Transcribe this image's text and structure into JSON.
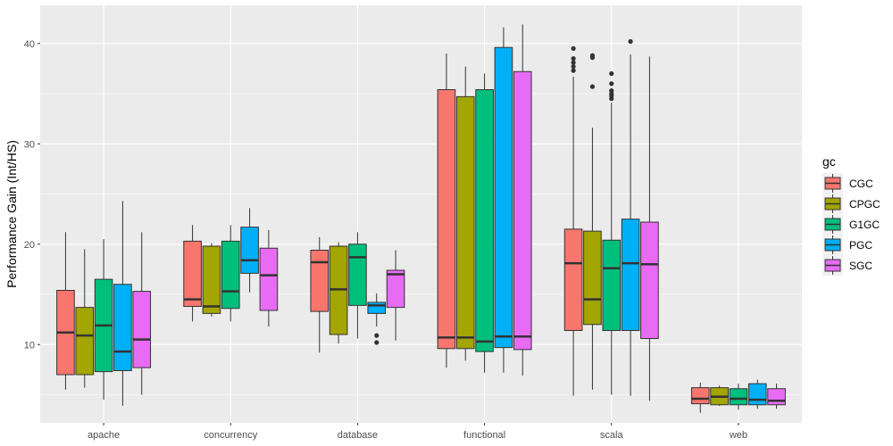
{
  "chart_data": {
    "type": "boxplot",
    "title": "",
    "xlabel": "",
    "ylabel": "Performance Gain (Int/HS)",
    "ylim": [
      2.2,
      43.8
    ],
    "yticks": [
      10,
      20,
      30,
      40
    ],
    "grid": true,
    "legend_title": "gc",
    "legend_position": "right",
    "categories": [
      "apache",
      "concurrency",
      "database",
      "functional",
      "scala",
      "web"
    ],
    "series": [
      {
        "name": "CGC",
        "color": "#F8766D",
        "boxes": [
          {
            "whisker_low": 5.5,
            "q1": 7.0,
            "median": 11.2,
            "q3": 15.4,
            "whisker_high": 21.2,
            "outliers": []
          },
          {
            "whisker_low": 12.3,
            "q1": 13.8,
            "median": 14.5,
            "q3": 20.3,
            "whisker_high": 21.9,
            "outliers": []
          },
          {
            "whisker_low": 9.2,
            "q1": 13.3,
            "median": 18.2,
            "q3": 19.4,
            "whisker_high": 20.7,
            "outliers": []
          },
          {
            "whisker_low": 7.7,
            "q1": 9.6,
            "median": 10.7,
            "q3": 35.4,
            "whisker_high": 39.0,
            "outliers": []
          },
          {
            "whisker_low": 4.9,
            "q1": 11.4,
            "median": 18.1,
            "q3": 21.5,
            "whisker_high": 36.7,
            "outliers": [
              37.3,
              37.7,
              38.1,
              38.5,
              39.5
            ]
          },
          {
            "whisker_low": 3.2,
            "q1": 4.1,
            "median": 4.6,
            "q3": 5.7,
            "whisker_high": 6.2,
            "outliers": []
          }
        ]
      },
      {
        "name": "CPGC",
        "color": "#A3A500",
        "boxes": [
          {
            "whisker_low": 5.7,
            "q1": 7.0,
            "median": 10.9,
            "q3": 13.7,
            "whisker_high": 19.5,
            "outliers": []
          },
          {
            "whisker_low": 12.8,
            "q1": 13.1,
            "median": 13.8,
            "q3": 19.8,
            "whisker_high": 20.1,
            "outliers": []
          },
          {
            "whisker_low": 10.1,
            "q1": 11.0,
            "median": 15.5,
            "q3": 19.8,
            "whisker_high": 20.2,
            "outliers": []
          },
          {
            "whisker_low": 8.4,
            "q1": 9.6,
            "median": 10.7,
            "q3": 34.7,
            "whisker_high": 37.7,
            "outliers": []
          },
          {
            "whisker_low": 5.5,
            "q1": 12.0,
            "median": 14.5,
            "q3": 21.3,
            "whisker_high": 31.6,
            "outliers": [
              35.7,
              38.6,
              38.8
            ]
          },
          {
            "whisker_low": 3.9,
            "q1": 4.0,
            "median": 4.8,
            "q3": 5.7,
            "whisker_high": 5.9,
            "outliers": []
          }
        ]
      },
      {
        "name": "G1GC",
        "color": "#00BF7D",
        "boxes": [
          {
            "whisker_low": 4.5,
            "q1": 7.3,
            "median": 11.9,
            "q3": 16.5,
            "whisker_high": 20.5,
            "outliers": []
          },
          {
            "whisker_low": 12.3,
            "q1": 13.6,
            "median": 15.3,
            "q3": 20.3,
            "whisker_high": 21.9,
            "outliers": []
          },
          {
            "whisker_low": 10.6,
            "q1": 13.9,
            "median": 18.7,
            "q3": 20.0,
            "whisker_high": 21.2,
            "outliers": []
          },
          {
            "whisker_low": 7.2,
            "q1": 9.3,
            "median": 10.3,
            "q3": 35.4,
            "whisker_high": 37.0,
            "outliers": []
          },
          {
            "whisker_low": 5.0,
            "q1": 11.4,
            "median": 17.6,
            "q3": 20.4,
            "whisker_high": 34.1,
            "outliers": [
              34.5,
              34.8,
              35.0,
              35.3,
              36.0,
              37.0
            ]
          },
          {
            "whisker_low": 3.5,
            "q1": 4.0,
            "median": 4.6,
            "q3": 5.6,
            "whisker_high": 6.1,
            "outliers": []
          }
        ]
      },
      {
        "name": "PGC",
        "color": "#00B0F6",
        "boxes": [
          {
            "whisker_low": 3.9,
            "q1": 7.4,
            "median": 9.3,
            "q3": 16.0,
            "whisker_high": 24.3,
            "outliers": []
          },
          {
            "whisker_low": 15.2,
            "q1": 17.1,
            "median": 18.4,
            "q3": 21.7,
            "whisker_high": 23.6,
            "outliers": []
          },
          {
            "whisker_low": 11.8,
            "q1": 13.1,
            "median": 13.9,
            "q3": 14.2,
            "whisker_high": 15.1,
            "outliers": [
              10.2,
              10.9
            ]
          },
          {
            "whisker_low": 7.2,
            "q1": 9.7,
            "median": 10.8,
            "q3": 39.6,
            "whisker_high": 41.6,
            "outliers": []
          },
          {
            "whisker_low": 4.9,
            "q1": 11.4,
            "median": 18.1,
            "q3": 22.5,
            "whisker_high": 38.9,
            "outliers": [
              40.2
            ]
          },
          {
            "whisker_low": 3.6,
            "q1": 4.0,
            "median": 4.5,
            "q3": 6.1,
            "whisker_high": 6.5,
            "outliers": []
          }
        ]
      },
      {
        "name": "SGC",
        "color": "#E76BF3",
        "boxes": [
          {
            "whisker_low": 5.0,
            "q1": 7.7,
            "median": 10.5,
            "q3": 15.3,
            "whisker_high": 21.2,
            "outliers": []
          },
          {
            "whisker_low": 11.8,
            "q1": 13.4,
            "median": 16.9,
            "q3": 19.6,
            "whisker_high": 21.4,
            "outliers": []
          },
          {
            "whisker_low": 10.4,
            "q1": 13.7,
            "median": 17.0,
            "q3": 17.4,
            "whisker_high": 19.4,
            "outliers": []
          },
          {
            "whisker_low": 6.9,
            "q1": 9.5,
            "median": 10.8,
            "q3": 37.2,
            "whisker_high": 41.9,
            "outliers": []
          },
          {
            "whisker_low": 4.4,
            "q1": 10.6,
            "median": 18.0,
            "q3": 22.2,
            "whisker_high": 38.7,
            "outliers": []
          },
          {
            "whisker_low": 3.6,
            "q1": 4.0,
            "median": 4.4,
            "q3": 5.6,
            "whisker_high": 6.1,
            "outliers": []
          }
        ]
      }
    ]
  }
}
